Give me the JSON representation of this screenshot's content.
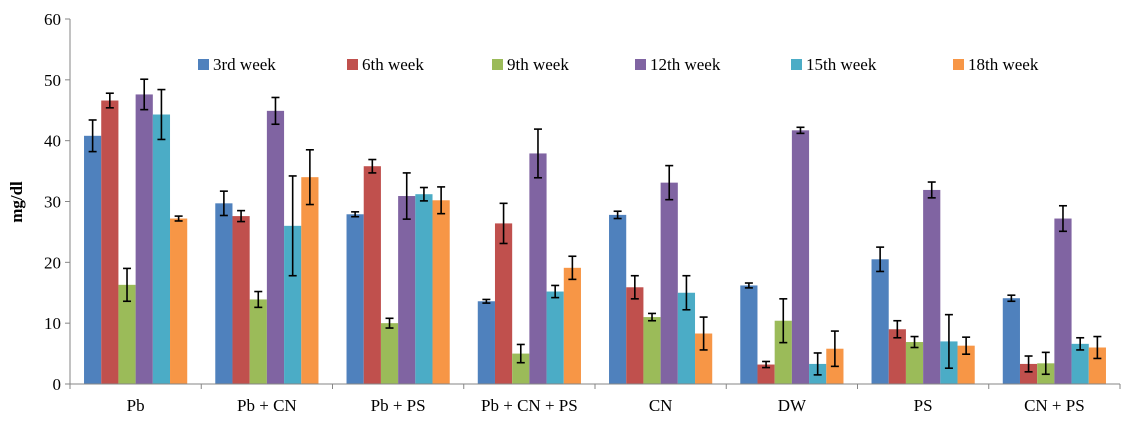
{
  "chart_data": {
    "type": "bar",
    "ylabel": "mg/dl",
    "xlabel": "",
    "ylim": [
      0,
      60
    ],
    "yticks": [
      0,
      10,
      20,
      30,
      40,
      50,
      60
    ],
    "legend_position": "top-right",
    "grid": false,
    "error_bars": true,
    "categories": [
      "Pb",
      "Pb + CN",
      "Pb + PS",
      "Pb + CN + PS",
      "CN",
      "DW",
      "PS",
      "CN + PS"
    ],
    "series": [
      {
        "name": "3rd week",
        "color": "#4F81BD",
        "values": [
          40.8,
          29.7,
          27.9,
          13.6,
          27.8,
          16.2,
          20.5,
          14.1
        ],
        "errors": [
          2.6,
          2.0,
          0.4,
          0.3,
          0.6,
          0.4,
          2.0,
          0.5
        ]
      },
      {
        "name": "6th week",
        "color": "#C0504D",
        "values": [
          46.6,
          27.6,
          35.8,
          26.4,
          15.9,
          3.2,
          9.0,
          3.3
        ],
        "errors": [
          1.2,
          0.9,
          1.1,
          3.3,
          1.9,
          0.5,
          1.4,
          1.3
        ]
      },
      {
        "name": "9th week",
        "color": "#9BBB59",
        "values": [
          16.3,
          13.9,
          10.0,
          5.0,
          11.0,
          10.4,
          6.9,
          3.4
        ],
        "errors": [
          2.7,
          1.3,
          0.8,
          1.5,
          0.6,
          3.6,
          0.9,
          1.8
        ]
      },
      {
        "name": "12th week",
        "color": "#8064A2",
        "values": [
          47.6,
          44.9,
          30.9,
          37.9,
          33.1,
          41.7,
          31.9,
          27.2
        ],
        "errors": [
          2.5,
          2.2,
          3.8,
          4.0,
          2.8,
          0.5,
          1.3,
          2.1
        ]
      },
      {
        "name": "15th week",
        "color": "#4BACC6",
        "values": [
          44.3,
          26.0,
          31.2,
          15.2,
          15.0,
          3.3,
          7.0,
          6.6
        ],
        "errors": [
          4.1,
          8.2,
          1.1,
          1.0,
          2.8,
          1.8,
          4.4,
          1.0
        ]
      },
      {
        "name": "18th week",
        "color": "#F79646",
        "values": [
          27.2,
          34.0,
          30.2,
          19.1,
          8.3,
          5.8,
          6.3,
          6.0
        ],
        "errors": [
          0.4,
          4.5,
          2.2,
          1.9,
          2.7,
          2.9,
          1.4,
          1.8
        ]
      }
    ]
  }
}
